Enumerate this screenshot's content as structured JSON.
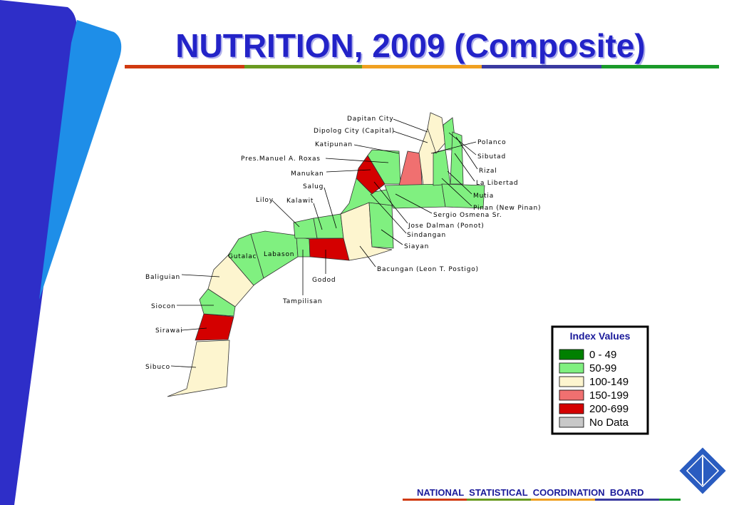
{
  "title": "NUTRITION, 2009 (Composite)",
  "map": {
    "labels": [
      "Dapitan City",
      "Dipolog City (Capital)",
      "Katipunan",
      "Pres.Manuel A. Roxas",
      "Manukan",
      "Salug",
      "Liloy",
      "Kalawit",
      "Gutalac",
      "Labason",
      "Baliguian",
      "Siocon",
      "Sirawai",
      "Sibuco",
      "Tampilisan",
      "Godod",
      "Bacungan (Leon T. Postigo)",
      "Siayan",
      "Sindangan",
      "Jose Dalman (Ponot)",
      "Sergio Osmena Sr.",
      "Pinan (New Pinan)",
      "Mutia",
      "La Libertad",
      "Rizal",
      "Sibutad",
      "Polanco"
    ]
  },
  "legend": {
    "title": "Index Values",
    "items": [
      {
        "label": "0 - 49",
        "color": "#008000"
      },
      {
        "label": "50-99",
        "color": "#80f080"
      },
      {
        "label": "100-149",
        "color": "#fdf5cf"
      },
      {
        "label": "150-199",
        "color": "#f07070"
      },
      {
        "label": "200-699",
        "color": "#d40000"
      },
      {
        "label": "No Data",
        "color": "#c8c8c8"
      }
    ]
  },
  "footer": "NATIONAL  STATISTICAL  COORDINATION  BOARD"
}
